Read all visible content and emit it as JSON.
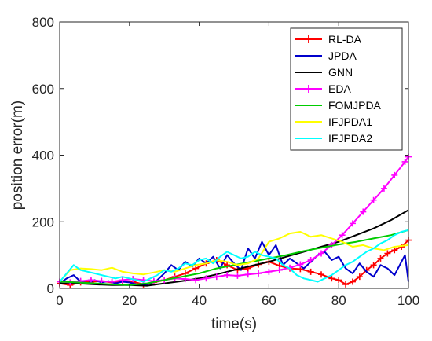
{
  "chart_data": {
    "type": "line",
    "title": "",
    "xlabel": "time(s)",
    "ylabel": "position error(m)",
    "xlim": [
      0,
      100
    ],
    "ylim": [
      0,
      800
    ],
    "xticks": [
      0,
      20,
      40,
      60,
      80,
      100
    ],
    "yticks": [
      0,
      200,
      400,
      600,
      800
    ],
    "grid": false,
    "legend_position": "top-right",
    "series": [
      {
        "name": "RL-DA",
        "color": "#ff0000",
        "marker": "plus",
        "x": [
          0,
          3,
          6,
          9,
          12,
          15,
          18,
          21,
          24,
          27,
          30,
          33,
          36,
          39,
          42,
          45,
          48,
          51,
          54,
          57,
          60,
          63,
          66,
          69,
          72,
          75,
          78,
          80,
          82,
          84,
          86,
          88,
          90,
          92,
          94,
          96,
          98,
          100
        ],
        "y": [
          15,
          10,
          18,
          20,
          22,
          18,
          22,
          20,
          12,
          18,
          25,
          35,
          45,
          60,
          75,
          85,
          70,
          55,
          60,
          72,
          80,
          68,
          60,
          58,
          50,
          42,
          30,
          25,
          12,
          20,
          35,
          55,
          70,
          90,
          105,
          115,
          125,
          145
        ]
      },
      {
        "name": "JPDA",
        "color": "#0000cc",
        "marker": "none",
        "x": [
          0,
          2,
          4,
          6,
          8,
          10,
          12,
          14,
          16,
          18,
          20,
          22,
          24,
          26,
          28,
          30,
          32,
          34,
          36,
          38,
          40,
          42,
          44,
          46,
          48,
          50,
          52,
          54,
          56,
          58,
          60,
          62,
          64,
          66,
          68,
          70,
          72,
          74,
          76,
          78,
          80,
          82,
          84,
          86,
          88,
          90,
          92,
          94,
          96,
          98,
          99,
          100
        ],
        "y": [
          15,
          30,
          40,
          20,
          15,
          25,
          18,
          22,
          15,
          20,
          18,
          12,
          10,
          15,
          25,
          45,
          70,
          55,
          80,
          65,
          90,
          75,
          95,
          60,
          100,
          75,
          55,
          120,
          90,
          140,
          100,
          130,
          70,
          90,
          75,
          60,
          80,
          100,
          110,
          85,
          95,
          60,
          45,
          75,
          50,
          35,
          70,
          60,
          40,
          80,
          100,
          20
        ]
      },
      {
        "name": "GNN",
        "color": "#000000",
        "marker": "none",
        "x": [
          0,
          5,
          10,
          15,
          20,
          25,
          30,
          35,
          40,
          45,
          50,
          55,
          60,
          65,
          70,
          75,
          80,
          85,
          90,
          95,
          100
        ],
        "y": [
          15,
          15,
          12,
          10,
          10,
          8,
          15,
          22,
          30,
          42,
          55,
          68,
          80,
          95,
          110,
          125,
          140,
          160,
          180,
          205,
          235
        ]
      },
      {
        "name": "EDA",
        "color": "#ff00ff",
        "marker": "plus",
        "x": [
          0,
          3,
          6,
          9,
          12,
          15,
          18,
          21,
          24,
          27,
          30,
          33,
          36,
          39,
          42,
          45,
          48,
          51,
          54,
          57,
          60,
          63,
          66,
          69,
          72,
          75,
          78,
          81,
          84,
          87,
          90,
          93,
          96,
          99,
          100
        ],
        "y": [
          20,
          18,
          22,
          25,
          22,
          20,
          25,
          28,
          25,
          22,
          25,
          30,
          28,
          25,
          30,
          35,
          40,
          38,
          42,
          45,
          50,
          55,
          62,
          72,
          85,
          105,
          130,
          160,
          195,
          230,
          265,
          300,
          340,
          380,
          395
        ]
      },
      {
        "name": "FOMJPDA",
        "color": "#00cc00",
        "marker": "none",
        "x": [
          0,
          5,
          10,
          15,
          20,
          25,
          30,
          35,
          40,
          45,
          50,
          55,
          60,
          65,
          70,
          75,
          80,
          85,
          90,
          95,
          100
        ],
        "y": [
          20,
          18,
          15,
          12,
          10,
          15,
          25,
          35,
          45,
          60,
          70,
          80,
          90,
          100,
          112,
          122,
          132,
          140,
          150,
          160,
          175
        ]
      },
      {
        "name": "IFJPDA1",
        "color": "#ffff00",
        "marker": "none",
        "x": [
          0,
          3,
          6,
          9,
          12,
          15,
          18,
          21,
          24,
          27,
          30,
          33,
          36,
          39,
          42,
          45,
          48,
          51,
          54,
          57,
          60,
          63,
          66,
          69,
          72,
          75,
          78,
          81,
          84,
          87,
          90,
          93,
          96,
          100
        ],
        "y": [
          20,
          55,
          60,
          58,
          55,
          62,
          50,
          45,
          42,
          48,
          55,
          50,
          60,
          70,
          75,
          85,
          80,
          70,
          75,
          90,
          140,
          150,
          165,
          170,
          155,
          160,
          150,
          140,
          125,
          130,
          120,
          115,
          125,
          130
        ]
      },
      {
        "name": "IFJPDA2",
        "color": "#00ffff",
        "marker": "none",
        "x": [
          0,
          2,
          4,
          6,
          8,
          10,
          12,
          14,
          16,
          18,
          20,
          22,
          24,
          26,
          28,
          30,
          32,
          34,
          36,
          38,
          40,
          42,
          44,
          46,
          48,
          50,
          52,
          54,
          56,
          58,
          60,
          62,
          64,
          66,
          68,
          70,
          72,
          74,
          76,
          78,
          80,
          82,
          84,
          86,
          88,
          90,
          92,
          94,
          96,
          98,
          100
        ],
        "y": [
          20,
          45,
          70,
          55,
          50,
          45,
          40,
          35,
          30,
          35,
          30,
          25,
          20,
          30,
          40,
          55,
          50,
          60,
          75,
          70,
          85,
          90,
          75,
          95,
          110,
          100,
          90,
          95,
          110,
          100,
          95,
          90,
          70,
          60,
          40,
          30,
          25,
          20,
          30,
          40,
          55,
          70,
          80,
          95,
          110,
          120,
          135,
          145,
          160,
          170,
          175
        ]
      }
    ]
  }
}
